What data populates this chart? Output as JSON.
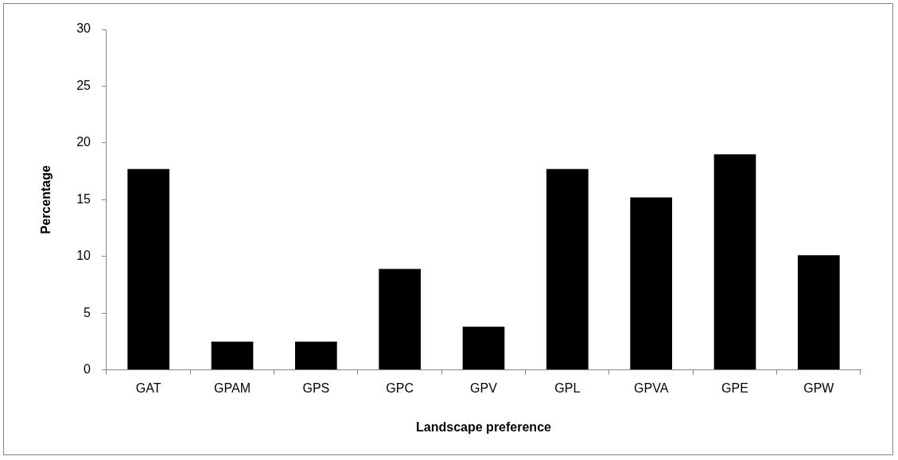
{
  "chart_data": {
    "type": "bar",
    "xlabel": "Landscape preference",
    "ylabel": "Percentage",
    "categories": [
      "GAT",
      "GPAM",
      "GPS",
      "GPC",
      "GPV",
      "GPL",
      "GPVA",
      "GPE",
      "GPW"
    ],
    "values": [
      17.7,
      2.5,
      2.5,
      8.9,
      3.8,
      17.7,
      15.2,
      19.0,
      10.1
    ],
    "color": "#000000",
    "ylim": [
      0,
      30
    ],
    "yticks": [
      0,
      5,
      10,
      15,
      20,
      25,
      30
    ],
    "grid": false,
    "legend": false
  }
}
